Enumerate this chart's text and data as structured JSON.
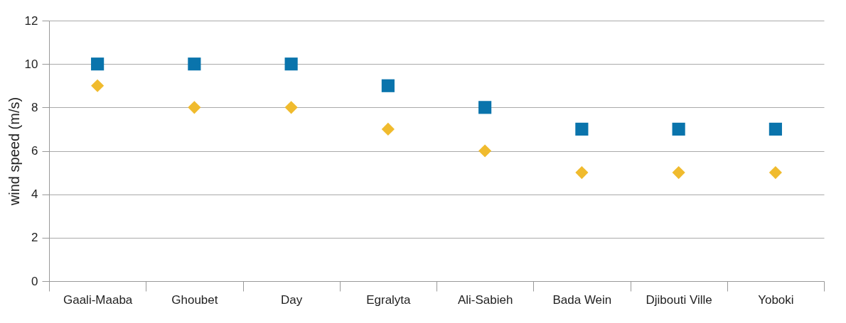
{
  "chart_data": {
    "type": "scatter",
    "ylabel": "wind speed (m/s)",
    "categories": [
      "Gaali-Maaba",
      "Ghoubet",
      "Day",
      "Egralyta",
      "Ali-Sabieh",
      "Bada Wein",
      "Djibouti Ville",
      "Yoboki"
    ],
    "series": [
      {
        "color": "#0a74ac",
        "marker": "square",
        "values": [
          10,
          10,
          10,
          9,
          8,
          7,
          7,
          7
        ]
      },
      {
        "color": "#f0bb2e",
        "marker": "diamond",
        "values": [
          9,
          8,
          8,
          7,
          6,
          5,
          5,
          5
        ]
      }
    ],
    "ylim": [
      0,
      12
    ],
    "yticks": [
      0,
      2,
      4,
      6,
      8,
      10,
      12
    ],
    "grid": "y"
  }
}
